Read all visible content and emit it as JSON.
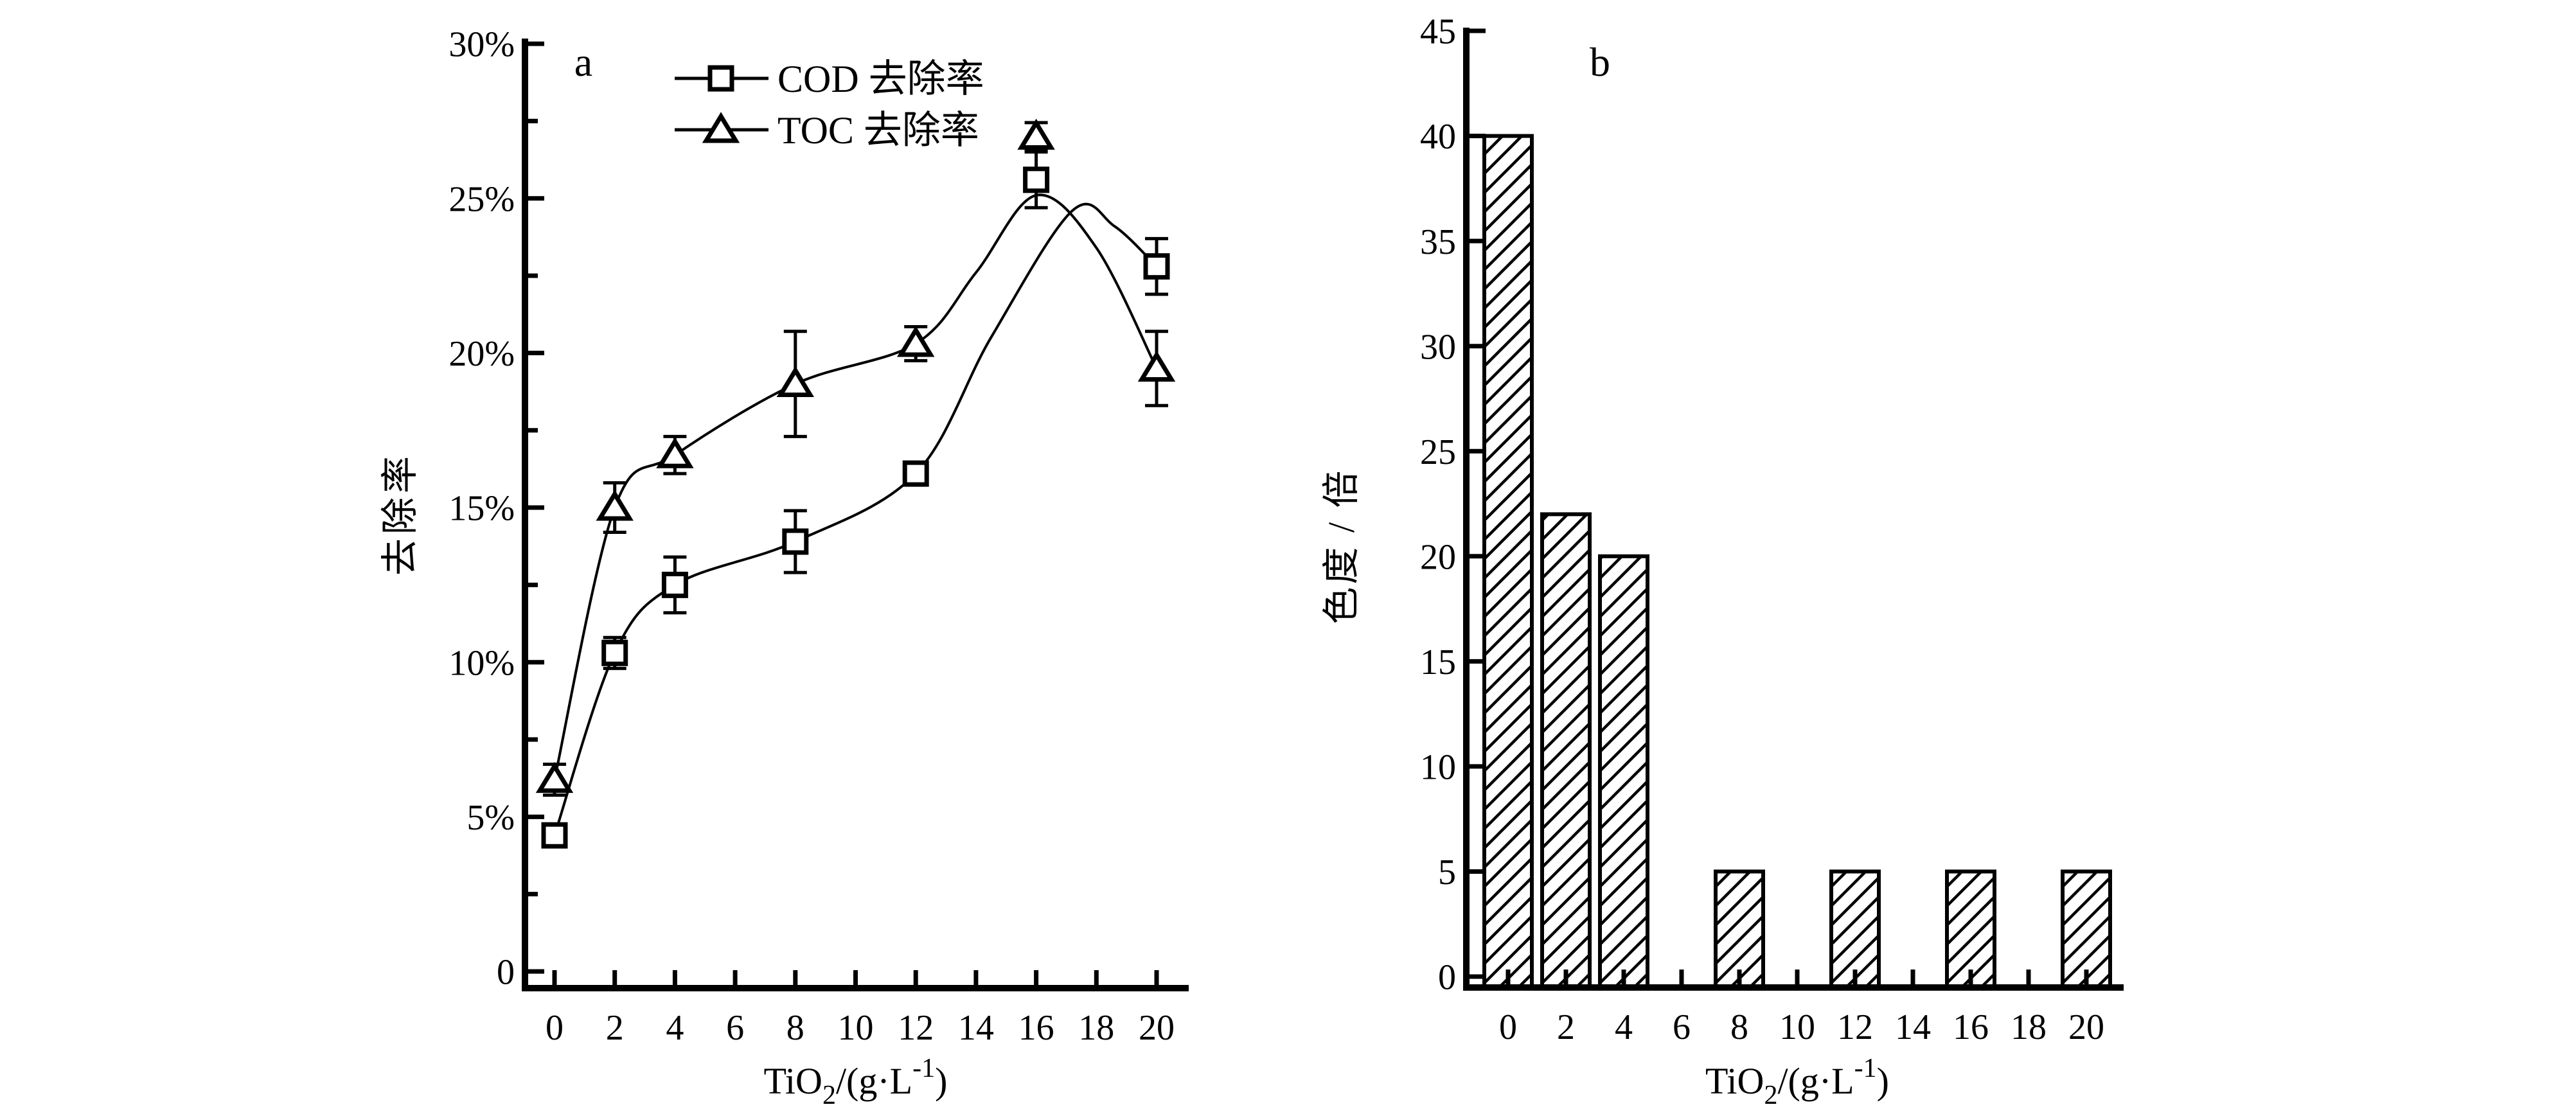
{
  "figure": {
    "background": "#ffffff",
    "ink_color": "#000000",
    "marker_fill": "#ffffff"
  },
  "chart_data": [
    {
      "panel_label": "a",
      "type": "line",
      "xlabel_parts": [
        {
          "t": "TiO"
        },
        {
          "t": "2",
          "style": "sub"
        },
        {
          "t": "/(g·L"
        },
        {
          "t": "-1",
          "style": "sup"
        },
        {
          "t": ")"
        }
      ],
      "ylabel": "去除率",
      "xlim": [
        -1,
        21
      ],
      "ylim": [
        0,
        30
      ],
      "x_tick_values": [
        0,
        2,
        4,
        6,
        8,
        10,
        12,
        14,
        16,
        18,
        20
      ],
      "x_tick_labels": [
        "0",
        "2",
        "4",
        "6",
        "8",
        "10",
        "12",
        "14",
        "16",
        "18",
        "20"
      ],
      "y_tick_major_step": 5,
      "y_tick_minor_step": 2.5,
      "y_tick_labels": [
        "0",
        "5%",
        "10%",
        "15%",
        "20%",
        "25%",
        "30%"
      ],
      "grid": false,
      "legend_position": "top-inside",
      "legend": [
        {
          "marker": "square",
          "label": "COD 去除率"
        },
        {
          "marker": "triangle",
          "label": "TOC 去除率"
        }
      ],
      "series": [
        {
          "name": "COD 去除率",
          "marker": "square",
          "x": [
            0,
            2,
            4,
            8,
            12,
            16,
            20
          ],
          "y": [
            4.4,
            10.3,
            12.5,
            13.9,
            16.1,
            25.6,
            22.8
          ],
          "yerr": [
            0.3,
            0.5,
            0.9,
            1.0,
            0.2,
            0.9,
            0.9
          ],
          "curve_through": [
            [
              0,
              4.4
            ],
            [
              2,
              10.3
            ],
            [
              4,
              12.5
            ],
            [
              8,
              13.9
            ],
            [
              12,
              16.1
            ],
            [
              14.5,
              20.5
            ],
            [
              17.2,
              24.6
            ],
            [
              18.6,
              24.1
            ],
            [
              20,
              22.8
            ]
          ]
        },
        {
          "name": "TOC 去除率",
          "marker": "triangle",
          "x": [
            0,
            2,
            4,
            8,
            12,
            16,
            20
          ],
          "y": [
            6.2,
            15.0,
            16.7,
            19.0,
            20.3,
            27.0,
            19.5
          ],
          "yerr": [
            0.5,
            0.8,
            0.6,
            1.7,
            0.55,
            0.45,
            1.2
          ],
          "curve_through": [
            [
              0,
              6.2
            ],
            [
              2,
              15.0
            ],
            [
              4,
              16.7
            ],
            [
              8,
              19.0
            ],
            [
              12,
              20.3
            ],
            [
              14,
              22.6
            ],
            [
              16,
              25.1
            ],
            [
              18,
              23.4
            ],
            [
              20,
              19.5
            ]
          ]
        }
      ]
    },
    {
      "panel_label": "b",
      "type": "bar",
      "xlabel_parts": [
        {
          "t": "TiO"
        },
        {
          "t": "2",
          "style": "sub"
        },
        {
          "t": "/(g·L"
        },
        {
          "t": "-1",
          "style": "sup"
        },
        {
          "t": ")"
        }
      ],
      "ylabel": "色度 / 倍",
      "xlim": [
        -1.5,
        21
      ],
      "ylim": [
        0,
        45
      ],
      "x_tick_values": [
        0,
        2,
        4,
        6,
        8,
        10,
        12,
        14,
        16,
        18,
        20
      ],
      "x_tick_labels": [
        "0",
        "2",
        "4",
        "6",
        "8",
        "10",
        "12",
        "14",
        "16",
        "18",
        "20"
      ],
      "y_tick_step": 5,
      "y_tick_labels": [
        "0",
        "5",
        "10",
        "15",
        "20",
        "25",
        "30",
        "35",
        "40",
        "45"
      ],
      "grid": false,
      "categories": [
        0,
        2,
        4,
        8,
        12,
        16,
        20
      ],
      "values": [
        40,
        22,
        20,
        5,
        5,
        5,
        5
      ],
      "bar_fill": "hatch-diagonal"
    }
  ]
}
